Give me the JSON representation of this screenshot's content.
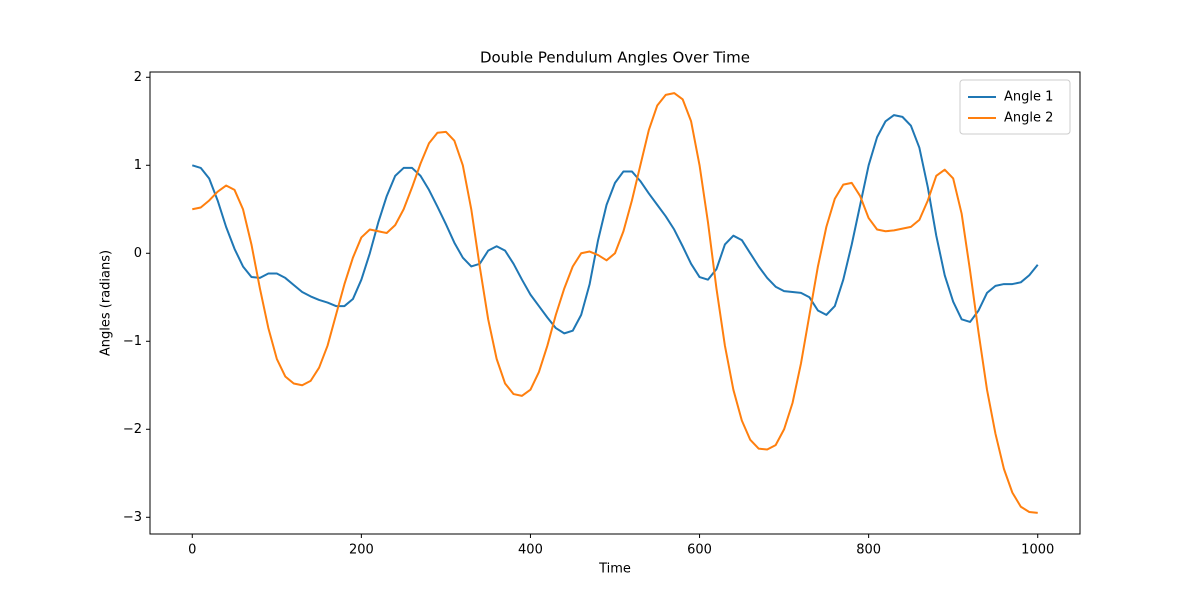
{
  "chart_data": {
    "type": "line",
    "title": "Double Pendulum Angles Over Time",
    "x_label": "Time",
    "y_label": "Angles (radians)",
    "x": [
      0,
      10,
      20,
      30,
      40,
      50,
      60,
      70,
      80,
      90,
      100,
      110,
      120,
      130,
      140,
      150,
      160,
      170,
      180,
      190,
      200,
      210,
      220,
      230,
      240,
      250,
      260,
      270,
      280,
      290,
      300,
      310,
      320,
      330,
      340,
      350,
      360,
      370,
      380,
      390,
      400,
      410,
      420,
      430,
      440,
      450,
      460,
      470,
      480,
      490,
      500,
      510,
      520,
      530,
      540,
      550,
      560,
      570,
      580,
      590,
      600,
      610,
      620,
      630,
      640,
      650,
      660,
      670,
      680,
      690,
      700,
      710,
      720,
      730,
      740,
      750,
      760,
      770,
      780,
      790,
      800,
      810,
      820,
      830,
      840,
      850,
      860,
      870,
      880,
      890,
      900,
      910,
      920,
      930,
      940,
      950,
      960,
      970,
      980,
      990,
      1000
    ],
    "series": [
      {
        "name": "Angle 1",
        "color": "#1f77b4",
        "values": [
          1.0,
          0.97,
          0.85,
          0.6,
          0.3,
          0.05,
          -0.15,
          -0.27,
          -0.28,
          -0.23,
          -0.23,
          -0.28,
          -0.36,
          -0.44,
          -0.49,
          -0.53,
          -0.56,
          -0.6,
          -0.6,
          -0.52,
          -0.3,
          0.0,
          0.35,
          0.65,
          0.88,
          0.97,
          0.97,
          0.88,
          0.72,
          0.53,
          0.33,
          0.12,
          -0.05,
          -0.15,
          -0.12,
          0.03,
          0.08,
          0.03,
          -0.12,
          -0.3,
          -0.47,
          -0.6,
          -0.73,
          -0.85,
          -0.91,
          -0.88,
          -0.7,
          -0.35,
          0.15,
          0.55,
          0.8,
          0.93,
          0.93,
          0.82,
          0.68,
          0.55,
          0.42,
          0.27,
          0.08,
          -0.12,
          -0.27,
          -0.3,
          -0.18,
          0.1,
          0.2,
          0.15,
          0.0,
          -0.15,
          -0.28,
          -0.38,
          -0.43,
          -0.44,
          -0.45,
          -0.5,
          -0.65,
          -0.7,
          -0.6,
          -0.3,
          0.1,
          0.55,
          1.0,
          1.32,
          1.5,
          1.57,
          1.55,
          1.45,
          1.2,
          0.75,
          0.2,
          -0.25,
          -0.55,
          -0.75,
          -0.78,
          -0.65,
          -0.45,
          -0.37,
          -0.35,
          -0.35,
          -0.33,
          -0.25,
          -0.13
        ]
      },
      {
        "name": "Angle 2",
        "color": "#ff7f0e",
        "values": [
          0.5,
          0.52,
          0.6,
          0.7,
          0.77,
          0.72,
          0.5,
          0.1,
          -0.4,
          -0.85,
          -1.2,
          -1.4,
          -1.48,
          -1.5,
          -1.45,
          -1.3,
          -1.05,
          -0.7,
          -0.35,
          -0.05,
          0.18,
          0.27,
          0.25,
          0.23,
          0.32,
          0.5,
          0.75,
          1.02,
          1.25,
          1.37,
          1.38,
          1.28,
          1.0,
          0.5,
          -0.15,
          -0.75,
          -1.2,
          -1.48,
          -1.6,
          -1.62,
          -1.55,
          -1.35,
          -1.05,
          -0.7,
          -0.4,
          -0.15,
          0.0,
          0.02,
          -0.02,
          -0.08,
          0.0,
          0.25,
          0.6,
          1.0,
          1.4,
          1.68,
          1.8,
          1.82,
          1.75,
          1.5,
          1.0,
          0.35,
          -0.4,
          -1.05,
          -1.55,
          -1.9,
          -2.12,
          -2.22,
          -2.23,
          -2.18,
          -2.0,
          -1.7,
          -1.25,
          -0.7,
          -0.15,
          0.3,
          0.62,
          0.78,
          0.8,
          0.65,
          0.4,
          0.27,
          0.25,
          0.26,
          0.28,
          0.3,
          0.38,
          0.6,
          0.88,
          0.95,
          0.85,
          0.45,
          -0.2,
          -0.9,
          -1.55,
          -2.05,
          -2.45,
          -2.72,
          -2.88,
          -2.94,
          -2.95
        ]
      }
    ],
    "xlim": [
      -50,
      1050
    ],
    "ylim": [
      -3.19,
      2.06
    ],
    "xticks": [
      0,
      200,
      400,
      600,
      800,
      1000
    ],
    "yticks": [
      {
        "value": -3,
        "label": "−3"
      },
      {
        "value": -2,
        "label": "−2"
      },
      {
        "value": -1,
        "label": "−1"
      },
      0,
      1,
      2
    ],
    "legend": "upper right",
    "grid": false
  }
}
